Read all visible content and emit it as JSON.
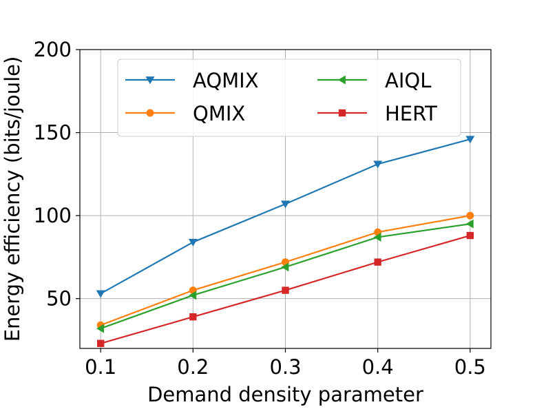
{
  "chart_data": {
    "type": "line",
    "title": "",
    "xlabel": "Demand density parameter",
    "ylabel": "Energy efficiency (bits/joule)",
    "x": [
      0.1,
      0.2,
      0.3,
      0.4,
      0.5
    ],
    "x_tick_labels": [
      "0.1",
      "0.2",
      "0.3",
      "0.4",
      "0.5"
    ],
    "xlim": [
      0.0775,
      0.5225
    ],
    "ylim": [
      20,
      200
    ],
    "y_ticks": [
      50,
      100,
      150,
      200
    ],
    "y_tick_labels": [
      "50",
      "100",
      "150",
      "200"
    ],
    "grid": true,
    "legend_position": "top",
    "series": [
      {
        "name": "AQMIX",
        "color": "#1f77b4",
        "marker": "triangle-down",
        "values": [
          53,
          84,
          107,
          131,
          146
        ]
      },
      {
        "name": "QMIX",
        "color": "#ff7f0e",
        "marker": "circle",
        "values": [
          34,
          55,
          72,
          90,
          100
        ]
      },
      {
        "name": "AIQL",
        "color": "#2ca02c",
        "marker": "triangle-left",
        "values": [
          32,
          52,
          69,
          87,
          95
        ]
      },
      {
        "name": "HERT",
        "color": "#d62728",
        "marker": "square",
        "values": [
          23,
          39,
          55,
          72,
          88
        ]
      }
    ]
  }
}
